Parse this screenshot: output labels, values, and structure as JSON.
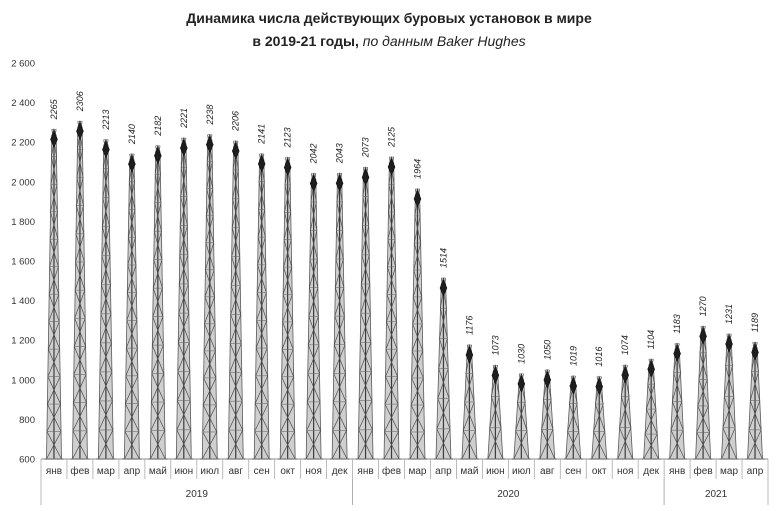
{
  "chart_data": {
    "type": "bar",
    "title_line1": "Динамика  числа действующих буровых установок в мире",
    "title_line2": "в 2019-21 годы,",
    "title_source": "по данным Baker Hughes",
    "ylim": [
      600,
      2600
    ],
    "yticks": [
      "600",
      "800",
      "1 000",
      "1 200",
      "1 400",
      "1 600",
      "1 800",
      "2 000",
      "2 200",
      "2 400",
      "2 600"
    ],
    "ytick_values": [
      600,
      800,
      1000,
      1200,
      1400,
      1600,
      1800,
      2000,
      2200,
      2400,
      2600
    ],
    "grid": false,
    "categories": [
      "янв",
      "фев",
      "мар",
      "апр",
      "май",
      "июн",
      "июл",
      "авг",
      "сен",
      "окт",
      "ноя",
      "дек",
      "янв",
      "фев",
      "мар",
      "апр",
      "май",
      "июн",
      "июл",
      "авг",
      "сен",
      "окт",
      "ноя",
      "дек",
      "янв",
      "фев",
      "мар",
      "апр"
    ],
    "values": [
      2265,
      2306,
      2213,
      2140,
      2182,
      2221,
      2238,
      2206,
      2141,
      2123,
      2042,
      2043,
      2073,
      2125,
      1964,
      1514,
      1176,
      1073,
      1030,
      1050,
      1019,
      1016,
      1074,
      1104,
      1183,
      1270,
      1231,
      1189
    ],
    "groups": [
      {
        "label": "2019",
        "start": 0,
        "end": 11
      },
      {
        "label": "2020",
        "start": 12,
        "end": 23
      },
      {
        "label": "2021",
        "start": 24,
        "end": 27
      }
    ],
    "bar_color": "#555555"
  }
}
